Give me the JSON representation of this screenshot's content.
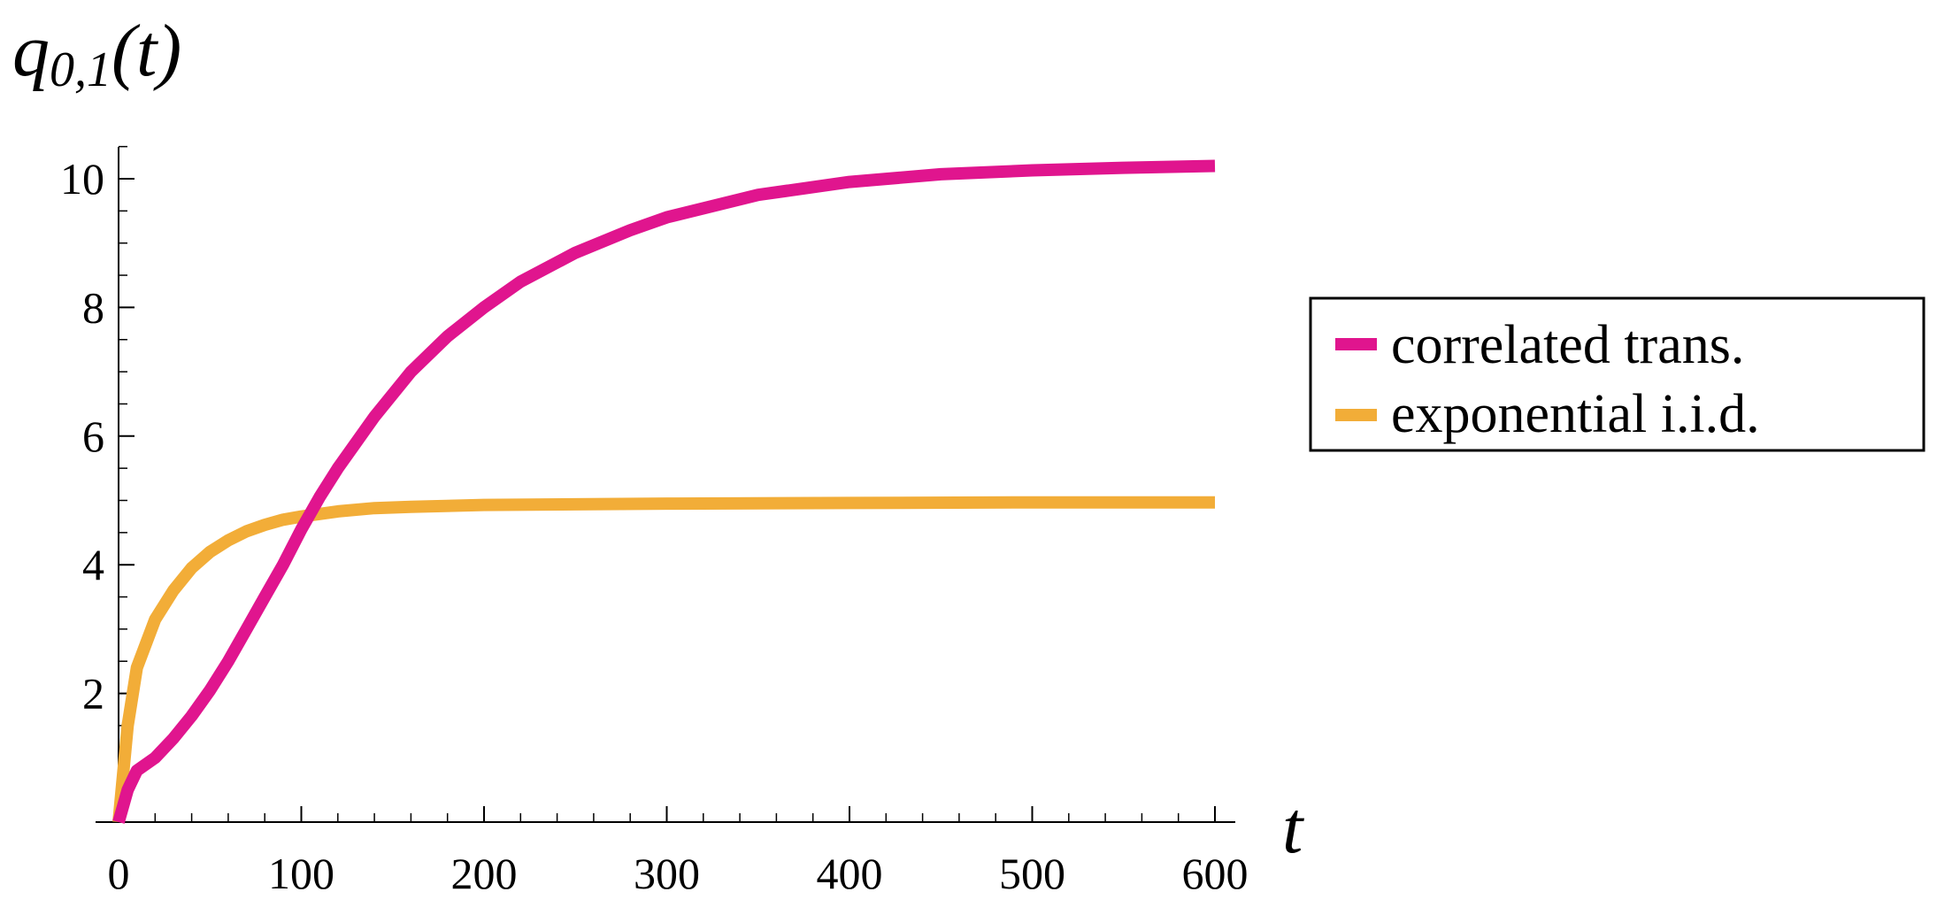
{
  "chart_data": {
    "type": "line",
    "title": "",
    "xlabel": "t",
    "ylabel": {
      "base": "q",
      "subscript": "0,1",
      "suffix": "(t)"
    },
    "xlim": [
      0,
      600
    ],
    "ylim": [
      0,
      10.5
    ],
    "x_ticks": [
      0,
      100,
      200,
      300,
      400,
      500,
      600
    ],
    "x_tick_labels": [
      "0",
      "100",
      "200",
      "300",
      "400",
      "500",
      "600"
    ],
    "y_ticks": [
      2,
      4,
      6,
      8,
      10
    ],
    "y_tick_labels": [
      "2",
      "4",
      "6",
      "8",
      "10"
    ],
    "grid": false,
    "legend_position": "right",
    "series": [
      {
        "name": "correlated trans.",
        "color": "#e0158e",
        "x": [
          0,
          5,
          10,
          20,
          30,
          40,
          50,
          60,
          70,
          80,
          90,
          100,
          110,
          120,
          140,
          160,
          180,
          200,
          220,
          250,
          280,
          300,
          350,
          400,
          450,
          500,
          550,
          600
        ],
        "y": [
          0,
          0.5,
          0.8,
          1.0,
          1.3,
          1.65,
          2.05,
          2.5,
          3.0,
          3.5,
          4.0,
          4.55,
          5.05,
          5.5,
          6.3,
          7.0,
          7.55,
          8.0,
          8.4,
          8.85,
          9.2,
          9.4,
          9.75,
          9.95,
          10.07,
          10.13,
          10.17,
          10.2
        ]
      },
      {
        "name": "exponential i.i.d.",
        "color": "#f2ad38",
        "x": [
          0,
          5,
          10,
          20,
          30,
          40,
          50,
          60,
          70,
          80,
          90,
          100,
          120,
          140,
          160,
          200,
          250,
          300,
          400,
          500,
          600
        ],
        "y": [
          0,
          1.5,
          2.4,
          3.15,
          3.6,
          3.95,
          4.2,
          4.38,
          4.52,
          4.62,
          4.7,
          4.75,
          4.83,
          4.88,
          4.9,
          4.93,
          4.94,
          4.95,
          4.96,
          4.97,
          4.97
        ]
      }
    ]
  }
}
